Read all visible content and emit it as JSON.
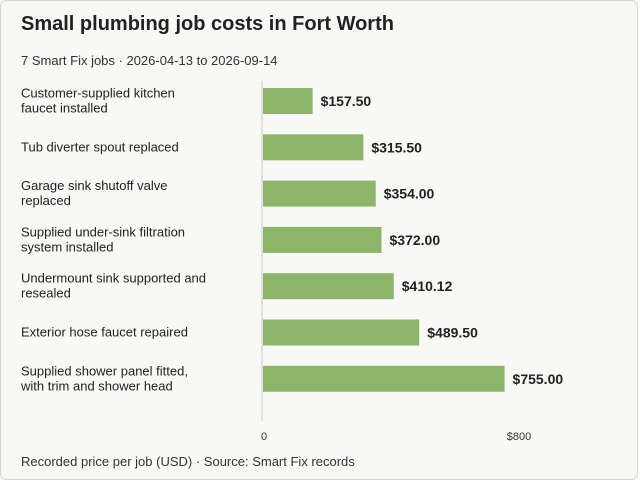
{
  "title": "Small plumbing job costs in Fort Worth",
  "subtitle": "7 Smart Fix jobs · 2026-04-13 to 2026-09-14",
  "footer": "Recorded price per job (USD) · Source: Smart Fix records",
  "colors": {
    "bar": "#8db56a",
    "axis": "#c8c8c8",
    "background": "#f8f8f6"
  },
  "chart_data": {
    "type": "bar",
    "orientation": "horizontal",
    "categories": [
      [
        "Customer-supplied kitchen",
        "faucet installed"
      ],
      [
        "Tub diverter spout replaced"
      ],
      [
        "Garage sink shutoff valve",
        "replaced"
      ],
      [
        "Supplied under-sink filtration",
        "system installed"
      ],
      [
        "Undermount sink supported and",
        "resealed"
      ],
      [
        "Exterior hose faucet repaired"
      ],
      [
        "Supplied shower panel fitted,",
        "with trim and shower head"
      ]
    ],
    "values": [
      157.5,
      315.5,
      354.0,
      372.0,
      410.12,
      489.5,
      755.0
    ],
    "value_labels": [
      "$157.50",
      "$315.50",
      "$354.00",
      "$372.00",
      "$410.12",
      "$489.50",
      "$755.00"
    ],
    "xlim": [
      0,
      800
    ],
    "ticks": [
      0,
      800
    ],
    "tick_labels": [
      "0",
      "$800"
    ],
    "grid": false
  }
}
